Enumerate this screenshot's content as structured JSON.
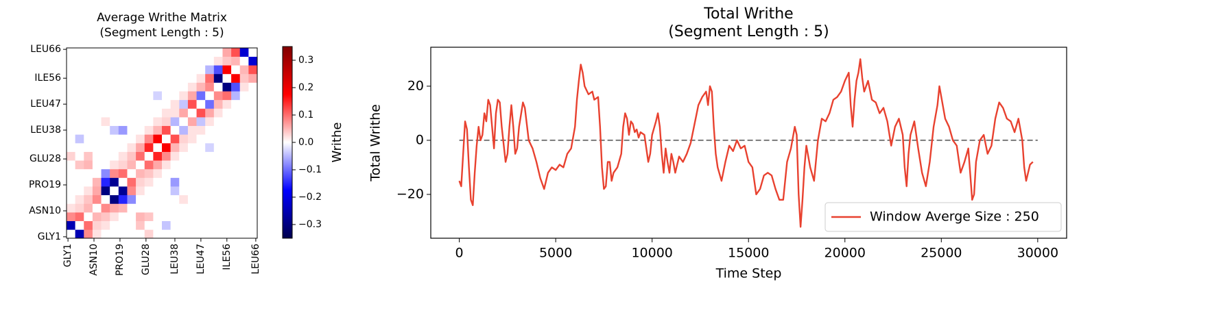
{
  "chart_data": [
    {
      "type": "heatmap",
      "title": [
        "Average Writhe Matrix",
        "(Segment Length : 5)"
      ],
      "x": [
        2,
        5,
        8,
        11,
        14,
        17,
        20,
        23,
        26,
        29,
        32,
        35,
        38,
        41,
        44,
        47,
        50,
        53,
        56,
        59,
        62,
        65
      ],
      "y": [
        2,
        5,
        8,
        11,
        14,
        17,
        20,
        23,
        26,
        29,
        32,
        35,
        38,
        41,
        44,
        47,
        50,
        53,
        56,
        59,
        62,
        65
      ],
      "z": [
        [
          0,
          -0.25,
          0.08,
          0.02,
          0,
          0,
          0,
          0,
          0,
          0.03,
          0,
          0,
          0,
          0,
          0,
          0,
          0,
          0,
          0,
          0,
          0,
          0
        ],
        [
          -0.25,
          0,
          0.1,
          0.03,
          0.02,
          0,
          0,
          0,
          0.04,
          0,
          0,
          -0.04,
          0,
          0,
          0,
          0,
          0,
          0,
          0,
          0,
          0,
          0
        ],
        [
          0.08,
          0.1,
          0,
          0.05,
          0.04,
          0.02,
          0,
          0,
          0.05,
          0.04,
          0,
          0,
          0,
          0,
          0,
          0,
          0,
          0,
          0,
          0,
          0,
          0
        ],
        [
          0.02,
          0.03,
          0.05,
          0,
          0.08,
          0.06,
          0.05,
          0,
          0,
          0,
          0,
          0,
          0,
          0,
          0,
          0,
          0,
          0,
          0,
          0,
          0,
          0
        ],
        [
          0,
          0.02,
          0.04,
          0.08,
          0,
          -0.3,
          -0.15,
          -0.08,
          0,
          0,
          0,
          0,
          0,
          0.02,
          0,
          0,
          0,
          0,
          0,
          0,
          0,
          0
        ],
        [
          0,
          0,
          0.02,
          0.06,
          -0.3,
          0,
          -0.28,
          0.08,
          0.02,
          0,
          0,
          0,
          -0.04,
          0,
          0,
          0,
          0,
          0,
          0,
          0,
          0,
          0
        ],
        [
          0,
          0,
          0,
          0.05,
          -0.15,
          -0.28,
          0,
          0.1,
          0.03,
          0.02,
          0,
          0,
          -0.07,
          0,
          0,
          0,
          0,
          0,
          0,
          0,
          0,
          0
        ],
        [
          0,
          0,
          0,
          0,
          -0.08,
          0.08,
          0.1,
          0,
          0.05,
          0.04,
          0.02,
          0,
          0,
          0,
          0,
          0,
          0,
          0,
          0,
          0,
          0,
          0
        ],
        [
          0,
          0.04,
          0.05,
          0,
          0,
          0.02,
          0.03,
          0.05,
          0,
          0.1,
          0.06,
          0.02,
          0,
          0,
          0,
          0,
          0,
          0,
          0,
          0,
          0,
          0
        ],
        [
          0.03,
          0,
          0.04,
          0,
          0,
          0,
          0.02,
          0.04,
          0.1,
          0,
          0.15,
          0.08,
          0.02,
          0,
          0,
          0,
          0,
          0,
          0,
          0,
          0,
          0
        ],
        [
          0,
          0,
          0,
          0,
          0,
          0,
          0,
          0.02,
          0.06,
          0.15,
          0,
          0.18,
          0.05,
          0.02,
          0,
          0,
          -0.03,
          0,
          0,
          0,
          0,
          0
        ],
        [
          0,
          -0.04,
          0,
          0,
          0,
          0,
          0,
          0,
          0.02,
          0.08,
          0.18,
          0,
          0.12,
          0.03,
          0.02,
          0,
          0,
          0,
          0,
          0,
          0,
          0
        ],
        [
          0,
          0,
          0,
          0,
          0,
          -0.04,
          -0.07,
          0,
          0,
          0.02,
          0.05,
          0.12,
          0,
          -0.05,
          0.02,
          0.02,
          0,
          0,
          0,
          0,
          0,
          0
        ],
        [
          0,
          0,
          0,
          0,
          0.02,
          0,
          0,
          0,
          0,
          0,
          0.02,
          0.03,
          -0.05,
          0,
          0.06,
          -0.04,
          0.02,
          0,
          0,
          0,
          0,
          0
        ],
        [
          0,
          0,
          0,
          0,
          0,
          0,
          0,
          0,
          0,
          0,
          0,
          0.02,
          0.02,
          0.06,
          0,
          0.12,
          0.06,
          0.02,
          0,
          0,
          0,
          0
        ],
        [
          0,
          0,
          0,
          0,
          0,
          0,
          0,
          0,
          0,
          0,
          0,
          0,
          0.02,
          -0.04,
          0.12,
          0,
          -0.1,
          0.05,
          0.02,
          0,
          0,
          0
        ],
        [
          0,
          0,
          0,
          0,
          0,
          0,
          0,
          0,
          0,
          0,
          -0.03,
          0,
          0,
          0.02,
          0.06,
          -0.1,
          0,
          0.08,
          0.1,
          -0.05,
          0,
          0
        ],
        [
          0,
          0,
          0,
          0,
          0,
          0,
          0,
          0,
          0,
          0,
          0,
          0,
          0,
          0,
          0.02,
          0.05,
          0.08,
          0,
          -0.3,
          -0.12,
          0.02,
          0
        ],
        [
          0,
          0,
          0,
          0,
          0,
          0,
          0,
          0,
          0,
          0,
          0,
          0,
          0,
          0,
          0,
          0.02,
          0.1,
          -0.3,
          0,
          0.18,
          0.04,
          0.06
        ],
        [
          0,
          0,
          0,
          0,
          0,
          0,
          0,
          0,
          0,
          0,
          0,
          0,
          0,
          0,
          0,
          0,
          -0.05,
          -0.12,
          0.18,
          0,
          0.05,
          0.12
        ],
        [
          0,
          0,
          0,
          0,
          0,
          0,
          0,
          0,
          0,
          0,
          0,
          0,
          0,
          0,
          0,
          0,
          0,
          0.02,
          0.04,
          0.05,
          0,
          -0.22
        ],
        [
          0,
          0,
          0,
          0,
          0,
          0,
          0,
          0,
          0,
          0,
          0,
          0,
          0,
          0,
          0,
          0,
          0,
          0,
          0.06,
          0.12,
          -0.22,
          0
        ]
      ],
      "xlim": [
        0.5,
        66.5
      ],
      "ylim": [
        0.5,
        66.5
      ],
      "xticks": [
        {
          "value": 1,
          "label": "GLY1"
        },
        {
          "value": 10,
          "label": "ASN10"
        },
        {
          "value": 19,
          "label": "PRO19"
        },
        {
          "value": 28,
          "label": "GLU28"
        },
        {
          "value": 38,
          "label": "LEU38"
        },
        {
          "value": 47,
          "label": "LEU47"
        },
        {
          "value": 56,
          "label": "ILE56"
        },
        {
          "value": 66,
          "label": "LEU66"
        }
      ],
      "yticks": [
        {
          "value": 1,
          "label": "GLY1"
        },
        {
          "value": 10,
          "label": "ASN10"
        },
        {
          "value": 19,
          "label": "PRO19"
        },
        {
          "value": 28,
          "label": "GLU28"
        },
        {
          "value": 38,
          "label": "LEU38"
        },
        {
          "value": 47,
          "label": "LEU47"
        },
        {
          "value": 56,
          "label": "ILE56"
        },
        {
          "value": 66,
          "label": "LEU66"
        }
      ],
      "colormap": "seismic",
      "zlim": [
        -0.35,
        0.35
      ],
      "zticks": [
        {
          "value": -0.3,
          "label": "−0.3"
        },
        {
          "value": -0.2,
          "label": "−0.2"
        },
        {
          "value": -0.1,
          "label": "−0.1"
        },
        {
          "value": 0,
          "label": "0.0"
        },
        0.1,
        0.2,
        0.3
      ],
      "colorbar_label": "Writhe"
    },
    {
      "type": "line",
      "title": [
        "Total  Writhe",
        "(Segment Length : 5)"
      ],
      "xlabel": "Time Step",
      "ylabel": "Total Writhe",
      "x": [
        0,
        100,
        200,
        300,
        400,
        500,
        600,
        700,
        800,
        900,
        1000,
        1100,
        1200,
        1300,
        1400,
        1500,
        1600,
        1700,
        1800,
        1900,
        2000,
        2100,
        2200,
        2400,
        2500,
        2600,
        2700,
        2800,
        2900,
        3000,
        3100,
        3300,
        3400,
        3600,
        3800,
        4000,
        4200,
        4400,
        4600,
        4800,
        5000,
        5200,
        5400,
        5600,
        5800,
        6000,
        6100,
        6200,
        6300,
        6400,
        6500,
        6700,
        6900,
        7000,
        7200,
        7300,
        7400,
        7500,
        7600,
        7700,
        7800,
        7900,
        8000,
        8200,
        8400,
        8500,
        8600,
        8700,
        8800,
        8900,
        9000,
        9100,
        9200,
        9300,
        9400,
        9600,
        9800,
        9900,
        10000,
        10200,
        10300,
        10400,
        10500,
        10600,
        10700,
        10800,
        10900,
        11000,
        11100,
        11200,
        11400,
        11600,
        11800,
        12000,
        12200,
        12400,
        12600,
        12800,
        12900,
        13000,
        13100,
        13200,
        13300,
        13400,
        13600,
        13800,
        14000,
        14200,
        14400,
        14600,
        14800,
        15000,
        15200,
        15400,
        15600,
        15800,
        16000,
        16200,
        16400,
        16600,
        16800,
        17000,
        17200,
        17400,
        17500,
        17600,
        17700,
        17800,
        17900,
        18000,
        18200,
        18400,
        18600,
        18800,
        19000,
        19200,
        19400,
        19600,
        19800,
        20000,
        20200,
        20300,
        20400,
        20500,
        20600,
        20700,
        20800,
        20900,
        21000,
        21200,
        21400,
        21600,
        21800,
        22000,
        22200,
        22400,
        22600,
        22800,
        23000,
        23100,
        23200,
        23300,
        23400,
        23600,
        23800,
        24000,
        24200,
        24400,
        24600,
        24800,
        24900,
        25000,
        25200,
        25400,
        25600,
        25800,
        26000,
        26200,
        26400,
        26600,
        26700,
        26800,
        27000,
        27200,
        27400,
        27600,
        27800,
        28000,
        28200,
        28400,
        28600,
        28800,
        29000,
        29200,
        29300,
        29400,
        29500,
        29600,
        29750
      ],
      "series": [
        {
          "name": "Window Averge Size : 250",
          "color": "#e8412f",
          "values": [
            -15,
            -17,
            -5,
            7,
            4,
            -10,
            -22,
            -24,
            -12,
            -2,
            5,
            0,
            2,
            10,
            7,
            15,
            13,
            5,
            -3,
            10,
            15,
            14,
            5,
            -8,
            -5,
            5,
            13,
            5,
            -5,
            -3,
            5,
            14,
            12,
            0,
            -3,
            -8,
            -14,
            -18,
            -12,
            -10,
            -11,
            -9,
            -10,
            -5,
            -3,
            5,
            15,
            22,
            28,
            25,
            20,
            17,
            18,
            15,
            16,
            5,
            -10,
            -18,
            -17,
            -8,
            -8,
            -15,
            -12,
            -10,
            -5,
            5,
            10,
            8,
            2,
            7,
            6,
            3,
            4,
            1,
            3,
            2,
            -8,
            -5,
            2,
            7,
            10,
            5,
            -5,
            -12,
            -3,
            -8,
            -12,
            -5,
            -8,
            -12,
            -6,
            -8,
            -5,
            -1,
            6,
            13,
            16,
            18,
            13,
            20,
            18,
            5,
            -5,
            -10,
            -15,
            -8,
            -2,
            -4,
            0,
            -3,
            -2,
            -8,
            -10,
            -20,
            -18,
            -13,
            -12,
            -13,
            -18,
            -22,
            -22,
            -8,
            -3,
            5,
            2,
            -20,
            -32,
            -22,
            -10,
            -2,
            -10,
            -15,
            0,
            8,
            7,
            10,
            15,
            16,
            18,
            22,
            25,
            13,
            5,
            15,
            22,
            25,
            30,
            23,
            18,
            22,
            15,
            14,
            10,
            12,
            7,
            -2,
            5,
            8,
            2,
            -10,
            -17,
            -5,
            2,
            7,
            -3,
            -12,
            -17,
            -8,
            5,
            13,
            20,
            16,
            8,
            5,
            0,
            -2,
            -12,
            -8,
            -3,
            -22,
            -20,
            -8,
            0,
            2,
            -5,
            -2,
            8,
            14,
            12,
            8,
            7,
            3,
            8,
            0,
            -10,
            -15,
            -12,
            -9,
            -8
          ]
        }
      ],
      "xlim": [
        -1480,
        31500
      ],
      "ylim": [
        -36.2,
        34.4
      ],
      "xticks": [
        0,
        5000,
        10000,
        15000,
        20000,
        25000,
        30000
      ],
      "yticks": [
        {
          "value": -20,
          "label": "−20"
        },
        0,
        20
      ],
      "reference_line": {
        "y": 0,
        "x": [
          0,
          30000
        ],
        "color": "#808080",
        "style": "dashed"
      },
      "legend": "lower right"
    }
  ]
}
